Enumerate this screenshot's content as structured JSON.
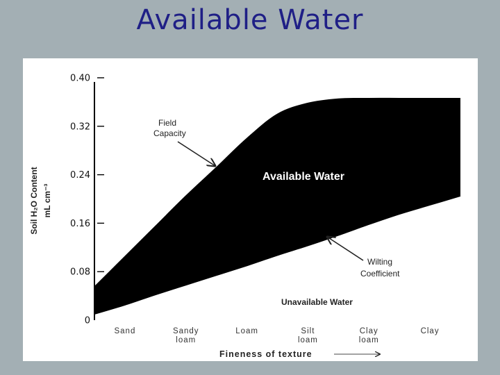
{
  "page": {
    "title": "Available Water"
  },
  "chart_data": {
    "type": "area",
    "categories": [
      "Sand",
      "Sandy loam",
      "Loam",
      "Silt loam",
      "Clay loam",
      "Clay"
    ],
    "category_lines": [
      [
        "Sand"
      ],
      [
        "Sandy",
        "loam"
      ],
      [
        "Loam"
      ],
      [
        "Silt",
        "loam"
      ],
      [
        "Clay",
        "loam"
      ],
      [
        "Clay"
      ]
    ],
    "x_positions": [
      0.5,
      1.5,
      2.5,
      3.5,
      4.5,
      5.5
    ],
    "xlim": [
      0,
      6
    ],
    "ylim": [
      0,
      0.4
    ],
    "yticks": [
      0,
      0.08,
      0.16,
      0.24,
      0.32,
      0.4
    ],
    "ytick_labels": [
      "0",
      "0.08",
      "0.16",
      "0.24",
      "0.32",
      "0.40"
    ],
    "ylabel_line1": "Soil H₂O Content",
    "ylabel_line2": "mL cm⁻³",
    "xlabel": "Fineness of texture",
    "series": [
      {
        "name": "Field Capacity",
        "x": [
          0,
          0.5,
          1,
          1.5,
          2,
          2.5,
          3,
          3.5,
          4,
          4.5,
          5,
          5.5,
          6
        ],
        "values": [
          0.055,
          0.105,
          0.155,
          0.205,
          0.252,
          0.3,
          0.34,
          0.358,
          0.365,
          0.366,
          0.366,
          0.366,
          0.366
        ]
      },
      {
        "name": "Wilting Coefficient",
        "x": [
          0,
          0.5,
          1,
          1.5,
          2,
          2.5,
          3,
          3.5,
          4,
          4.5,
          5,
          5.5,
          6
        ],
        "values": [
          0.01,
          0.025,
          0.042,
          0.058,
          0.074,
          0.09,
          0.107,
          0.123,
          0.14,
          0.158,
          0.175,
          0.19,
          0.205
        ]
      }
    ],
    "annotations": {
      "field_capacity": [
        "Field",
        "Capacity"
      ],
      "wilting": [
        "Wilting",
        "Coefficient"
      ],
      "available": "Available Water",
      "unavailable": "Unavailable Water"
    },
    "grid": false,
    "colors": {
      "band": "#000000",
      "background": "#ffffff"
    }
  }
}
